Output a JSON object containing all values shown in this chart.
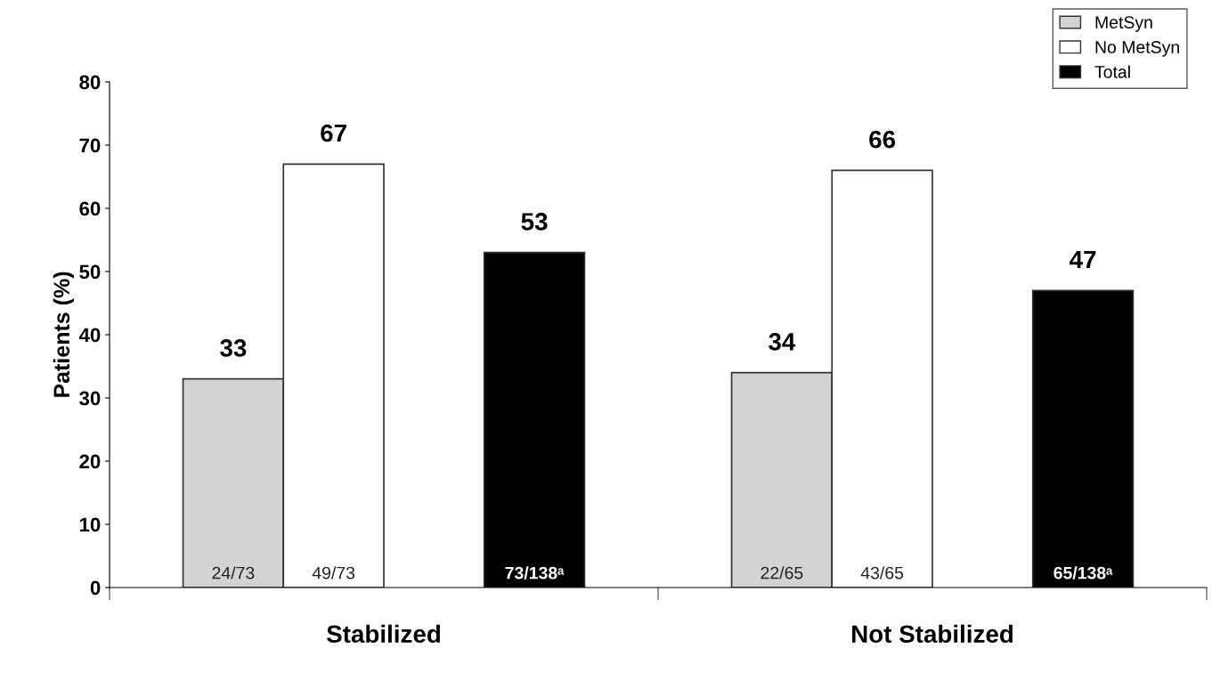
{
  "chart_data": {
    "type": "bar",
    "ylabel": "Patients (%)",
    "categories": [
      "Stabilized",
      "Not Stabilized"
    ],
    "series": [
      {
        "name": "MetSyn",
        "color": "#d3d3d3",
        "values": [
          33,
          34
        ],
        "value_labels": [
          "33",
          "34"
        ]
      },
      {
        "name": "No MetSyn",
        "color": "#ffffff",
        "values": [
          67,
          66
        ],
        "value_labels": [
          "67",
          "66"
        ]
      },
      {
        "name": "Total",
        "color": "#000000",
        "values": [
          53,
          47
        ],
        "value_labels": [
          "53",
          "47"
        ]
      }
    ],
    "annotations": [
      "24/73",
      "22/65",
      "49/73",
      "43/65",
      "73/138ᵃ",
      "65/138ᵃ"
    ],
    "ylim": [
      0,
      80
    ],
    "yticks": [
      0,
      10,
      20,
      30,
      40,
      50,
      60,
      70,
      80
    ],
    "legend": "top right",
    "grid": false
  }
}
